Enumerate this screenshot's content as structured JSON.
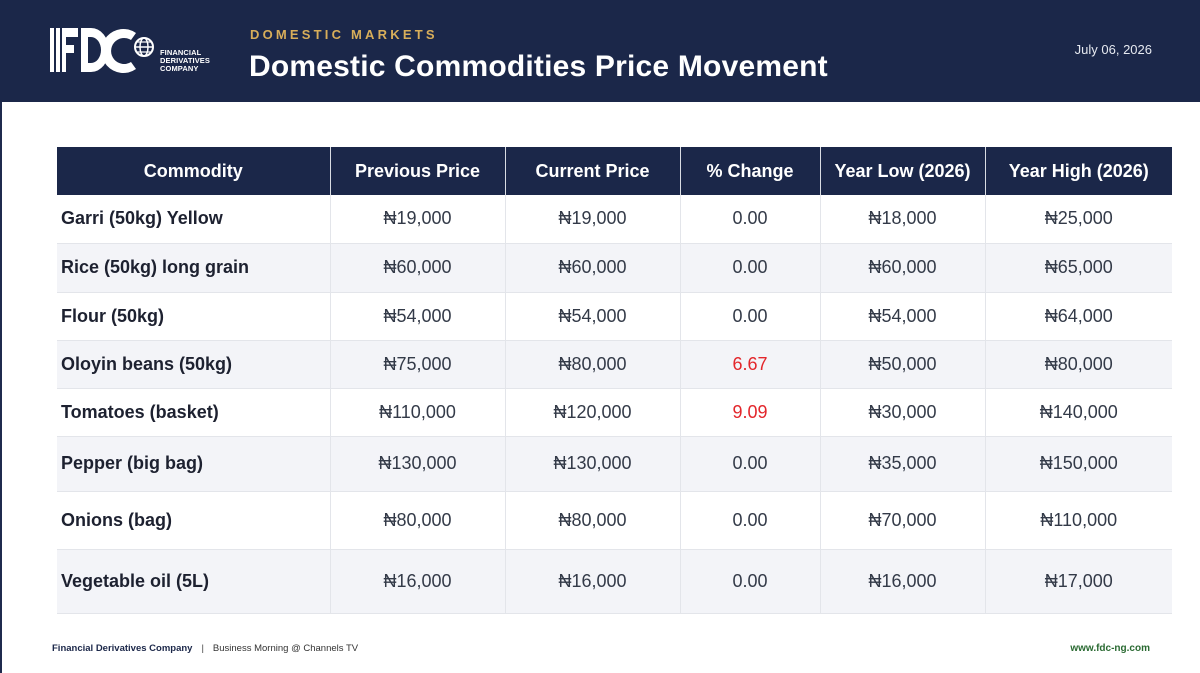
{
  "header": {
    "logo_text": "FDC",
    "logo_subtext": [
      "FINANCIAL",
      "DERIVATIVES",
      "COMPANY"
    ],
    "section_label": "DOMESTIC MARKETS",
    "title": "Domestic Commodities Price Movement",
    "date": "July 06, 2026"
  },
  "table": {
    "columns": [
      "Commodity",
      "Previous Price",
      "Current Price",
      "% Change",
      "Year Low (2026)",
      "Year High (2026)"
    ],
    "rows": [
      {
        "commodity": "Garri (50kg) Yellow",
        "previous": "₦19,000",
        "current": "₦19,000",
        "change": "0.00",
        "year_low": "₦18,000",
        "year_high": "₦25,000"
      },
      {
        "commodity": "Rice (50kg) long grain",
        "previous": "₦60,000",
        "current": "₦60,000",
        "change": "0.00",
        "year_low": "₦60,000",
        "year_high": "₦65,000"
      },
      {
        "commodity": "Flour (50kg)",
        "previous": "₦54,000",
        "current": "₦54,000",
        "change": "0.00",
        "year_low": "₦54,000",
        "year_high": "₦64,000"
      },
      {
        "commodity": "Oloyin beans (50kg)",
        "previous": "₦75,000",
        "current": "₦80,000",
        "change": "6.67",
        "year_low": "₦50,000",
        "year_high": "₦80,000"
      },
      {
        "commodity": "Tomatoes (basket)",
        "previous": "₦110,000",
        "current": "₦120,000",
        "change": "9.09",
        "year_low": "₦30,000",
        "year_high": "₦140,000"
      },
      {
        "commodity": "Pepper (big bag)",
        "previous": "₦130,000",
        "current": "₦130,000",
        "change": "0.00",
        "year_low": "₦35,000",
        "year_high": "₦150,000"
      },
      {
        "commodity": "Onions (bag)",
        "previous": "₦80,000",
        "current": "₦80,000",
        "change": "0.00",
        "year_low": "₦70,000",
        "year_high": "₦110,000"
      },
      {
        "commodity": "Vegetable oil (5L)",
        "previous": "₦16,000",
        "current": "₦16,000",
        "change": "0.00",
        "year_low": "₦16,000",
        "year_high": "₦17,000"
      }
    ]
  },
  "footer": {
    "company": "Financial Derivatives Company",
    "separator": "|",
    "source": "Business Morning @ Channels TV",
    "website": "www.fdc-ng.com"
  },
  "colors": {
    "navy": "#1b2749",
    "gold": "#d8ae5a",
    "increase_red": "#e3262b",
    "website_green": "#2a6a32"
  }
}
